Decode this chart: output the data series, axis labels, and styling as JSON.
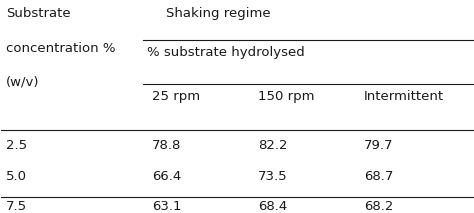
{
  "col_header_top": "Shaking regime",
  "col_header_mid": "% substrate hydrolysed",
  "row_header_line1": "Substrate",
  "row_header_line2": "concentration %",
  "row_header_line3": "(w/v)",
  "sub_cols": [
    "25 rpm",
    "150 rpm",
    "Intermittent"
  ],
  "rows": [
    {
      "label": "2.5",
      "values": [
        "78.8",
        "82.2",
        "79.7"
      ]
    },
    {
      "label": "5.0",
      "values": [
        "66.4",
        "73.5",
        "68.7"
      ]
    },
    {
      "label": "7.5",
      "values": [
        "63.1",
        "68.4",
        "68.2"
      ]
    }
  ],
  "text_color": "#1a1a1a",
  "font_size": 9.5,
  "fig_width": 4.74,
  "fig_height": 2.13
}
